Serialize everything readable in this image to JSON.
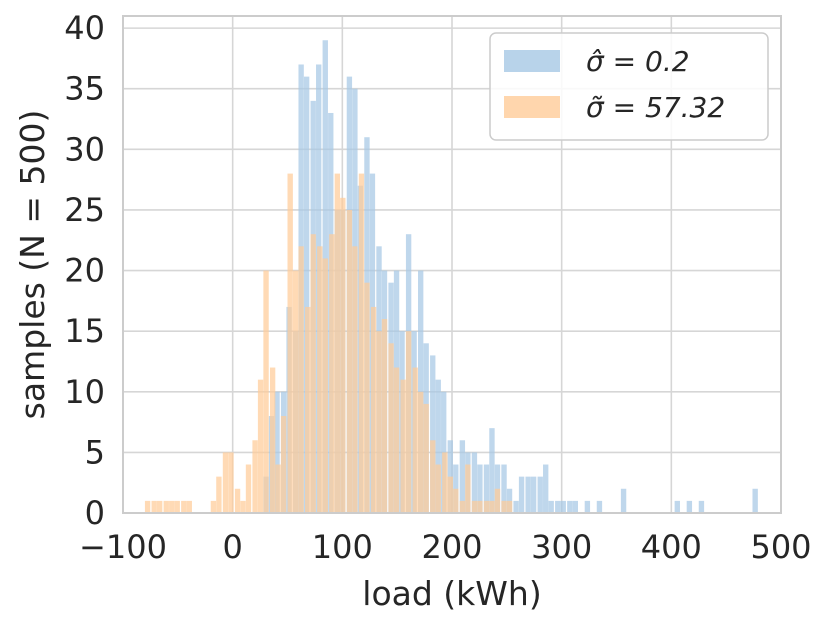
{
  "chart_data": {
    "type": "histogram",
    "xlabel": "load (kWh)",
    "ylabel": "samples (N = 500)",
    "xlim": [
      -100,
      500
    ],
    "ylim": [
      0,
      41
    ],
    "xticks": [
      "−100",
      "0",
      "100",
      "200",
      "300",
      "400",
      "500"
    ],
    "xtick_values": [
      -100,
      0,
      100,
      200,
      300,
      400,
      500
    ],
    "yticks": [
      "0",
      "5",
      "10",
      "15",
      "20",
      "25",
      "30",
      "35",
      "40"
    ],
    "ytick_values": [
      0,
      5,
      10,
      15,
      20,
      25,
      30,
      35,
      40
    ],
    "grid": true,
    "legend_position": "top-right",
    "series": [
      {
        "name": "σ̂ = 0.2",
        "color": "#a6c8e5",
        "bin_width": 5.44,
        "x": [
          28,
          33,
          38,
          44,
          49,
          55,
          60,
          65,
          71,
          76,
          82,
          87,
          93,
          98,
          104,
          109,
          114,
          120,
          125,
          131,
          136,
          142,
          147,
          152,
          158,
          163,
          169,
          174,
          180,
          185,
          190,
          196,
          201,
          207,
          212,
          218,
          223,
          229,
          234,
          239,
          245,
          250,
          256,
          261,
          267,
          272,
          278,
          283,
          288,
          294,
          299,
          305,
          310,
          321,
          332,
          354,
          403,
          414,
          425,
          474
        ],
        "values": [
          3,
          8,
          10,
          10,
          17,
          15,
          37,
          36,
          34,
          37,
          39,
          33,
          25,
          25,
          36,
          35,
          27,
          31,
          28,
          22,
          20,
          19,
          20,
          15,
          23,
          15,
          20,
          14,
          13,
          11,
          10,
          6,
          4,
          6,
          5,
          5,
          4,
          4,
          7,
          4,
          4,
          2,
          1,
          3,
          3,
          3,
          3,
          4,
          1,
          1,
          1,
          1,
          1,
          1,
          1,
          2,
          1,
          1,
          1,
          2
        ]
      },
      {
        "name": "σ̃ = 57.32",
        "color": "#ffcc99",
        "bin_width": 5.44,
        "x": [
          -80,
          -74,
          -69,
          -63,
          -58,
          -53,
          -47,
          -42,
          -20,
          -15,
          -9,
          -4,
          2,
          7,
          12,
          18,
          23,
          28,
          34,
          39,
          44,
          50,
          55,
          60,
          66,
          71,
          77,
          82,
          88,
          93,
          98,
          104,
          109,
          115,
          120,
          126,
          131,
          136,
          142,
          147,
          153,
          158,
          164,
          169,
          174,
          180,
          185,
          191,
          196,
          201,
          207,
          212,
          218,
          223,
          229,
          234,
          239,
          245,
          250
        ],
        "values": [
          1,
          1,
          1,
          1,
          1,
          1,
          1,
          1,
          1,
          3,
          5,
          5,
          2,
          1,
          4,
          6,
          11,
          20,
          12,
          4,
          8,
          28,
          20,
          22,
          17,
          23,
          22,
          21,
          23,
          28,
          26,
          25,
          22,
          28,
          19,
          17,
          15,
          16,
          14,
          12,
          11,
          15,
          12,
          10,
          9,
          6,
          4,
          5,
          3,
          2,
          1,
          4,
          1,
          1,
          1,
          1,
          2,
          1,
          1
        ]
      }
    ]
  }
}
